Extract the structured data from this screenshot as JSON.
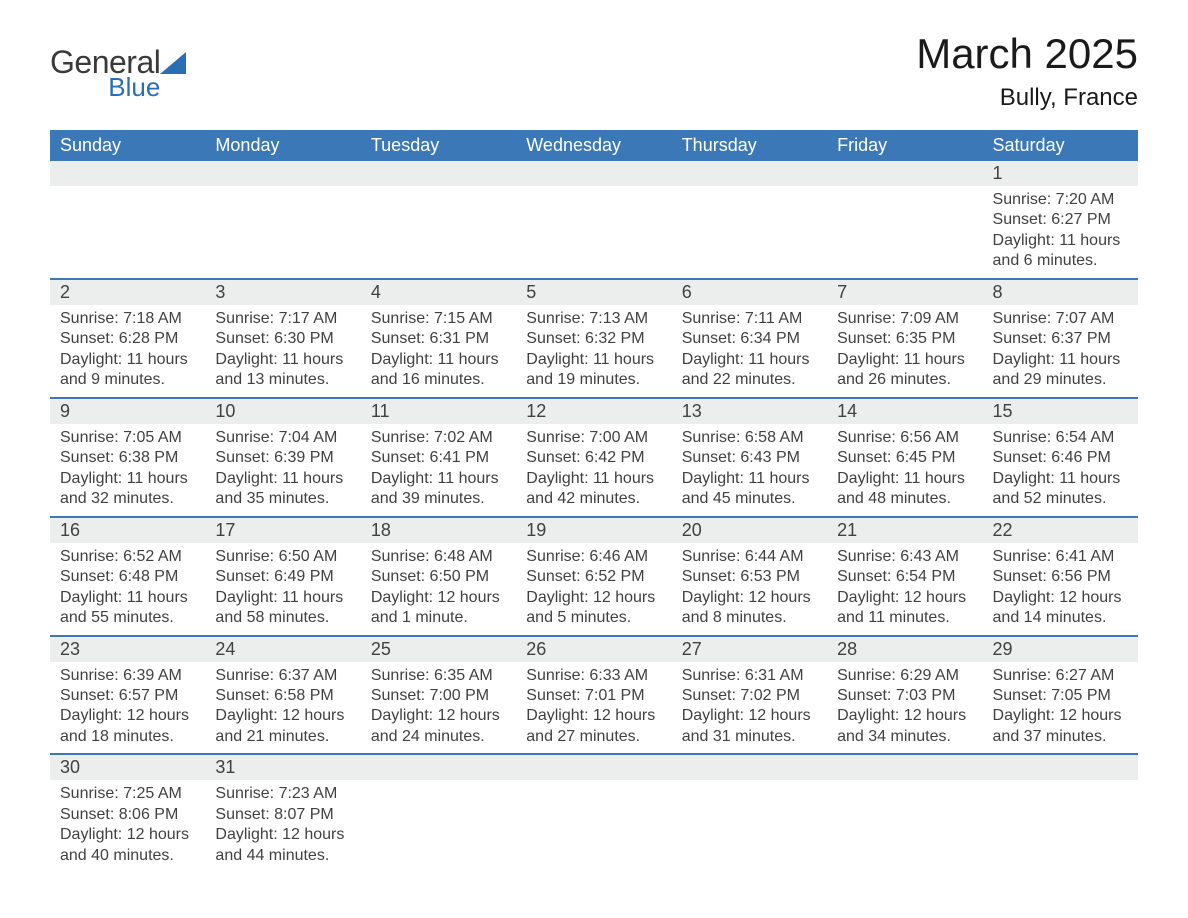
{
  "logo": {
    "text1": "General",
    "text2": "Blue",
    "triangle_color": "#2a6fb5"
  },
  "title": "March 2025",
  "location": "Bully, France",
  "colors": {
    "header_bg": "#3b78b8",
    "header_text": "#ffffff",
    "daynum_bg": "#eceded",
    "row_divider": "#3b78b8",
    "body_text": "#414141",
    "page_bg": "#ffffff",
    "logo_blue": "#2a6fb5"
  },
  "typography": {
    "title_fontsize": 42,
    "location_fontsize": 24,
    "weekday_fontsize": 18,
    "daynum_fontsize": 18,
    "body_fontsize": 16
  },
  "weekdays": [
    "Sunday",
    "Monday",
    "Tuesday",
    "Wednesday",
    "Thursday",
    "Friday",
    "Saturday"
  ],
  "weeks": [
    [
      null,
      null,
      null,
      null,
      null,
      null,
      {
        "n": "1",
        "sunrise": "Sunrise: 7:20 AM",
        "sunset": "Sunset: 6:27 PM",
        "dl1": "Daylight: 11 hours",
        "dl2": "and 6 minutes."
      }
    ],
    [
      {
        "n": "2",
        "sunrise": "Sunrise: 7:18 AM",
        "sunset": "Sunset: 6:28 PM",
        "dl1": "Daylight: 11 hours",
        "dl2": "and 9 minutes."
      },
      {
        "n": "3",
        "sunrise": "Sunrise: 7:17 AM",
        "sunset": "Sunset: 6:30 PM",
        "dl1": "Daylight: 11 hours",
        "dl2": "and 13 minutes."
      },
      {
        "n": "4",
        "sunrise": "Sunrise: 7:15 AM",
        "sunset": "Sunset: 6:31 PM",
        "dl1": "Daylight: 11 hours",
        "dl2": "and 16 minutes."
      },
      {
        "n": "5",
        "sunrise": "Sunrise: 7:13 AM",
        "sunset": "Sunset: 6:32 PM",
        "dl1": "Daylight: 11 hours",
        "dl2": "and 19 minutes."
      },
      {
        "n": "6",
        "sunrise": "Sunrise: 7:11 AM",
        "sunset": "Sunset: 6:34 PM",
        "dl1": "Daylight: 11 hours",
        "dl2": "and 22 minutes."
      },
      {
        "n": "7",
        "sunrise": "Sunrise: 7:09 AM",
        "sunset": "Sunset: 6:35 PM",
        "dl1": "Daylight: 11 hours",
        "dl2": "and 26 minutes."
      },
      {
        "n": "8",
        "sunrise": "Sunrise: 7:07 AM",
        "sunset": "Sunset: 6:37 PM",
        "dl1": "Daylight: 11 hours",
        "dl2": "and 29 minutes."
      }
    ],
    [
      {
        "n": "9",
        "sunrise": "Sunrise: 7:05 AM",
        "sunset": "Sunset: 6:38 PM",
        "dl1": "Daylight: 11 hours",
        "dl2": "and 32 minutes."
      },
      {
        "n": "10",
        "sunrise": "Sunrise: 7:04 AM",
        "sunset": "Sunset: 6:39 PM",
        "dl1": "Daylight: 11 hours",
        "dl2": "and 35 minutes."
      },
      {
        "n": "11",
        "sunrise": "Sunrise: 7:02 AM",
        "sunset": "Sunset: 6:41 PM",
        "dl1": "Daylight: 11 hours",
        "dl2": "and 39 minutes."
      },
      {
        "n": "12",
        "sunrise": "Sunrise: 7:00 AM",
        "sunset": "Sunset: 6:42 PM",
        "dl1": "Daylight: 11 hours",
        "dl2": "and 42 minutes."
      },
      {
        "n": "13",
        "sunrise": "Sunrise: 6:58 AM",
        "sunset": "Sunset: 6:43 PM",
        "dl1": "Daylight: 11 hours",
        "dl2": "and 45 minutes."
      },
      {
        "n": "14",
        "sunrise": "Sunrise: 6:56 AM",
        "sunset": "Sunset: 6:45 PM",
        "dl1": "Daylight: 11 hours",
        "dl2": "and 48 minutes."
      },
      {
        "n": "15",
        "sunrise": "Sunrise: 6:54 AM",
        "sunset": "Sunset: 6:46 PM",
        "dl1": "Daylight: 11 hours",
        "dl2": "and 52 minutes."
      }
    ],
    [
      {
        "n": "16",
        "sunrise": "Sunrise: 6:52 AM",
        "sunset": "Sunset: 6:48 PM",
        "dl1": "Daylight: 11 hours",
        "dl2": "and 55 minutes."
      },
      {
        "n": "17",
        "sunrise": "Sunrise: 6:50 AM",
        "sunset": "Sunset: 6:49 PM",
        "dl1": "Daylight: 11 hours",
        "dl2": "and 58 minutes."
      },
      {
        "n": "18",
        "sunrise": "Sunrise: 6:48 AM",
        "sunset": "Sunset: 6:50 PM",
        "dl1": "Daylight: 12 hours",
        "dl2": "and 1 minute."
      },
      {
        "n": "19",
        "sunrise": "Sunrise: 6:46 AM",
        "sunset": "Sunset: 6:52 PM",
        "dl1": "Daylight: 12 hours",
        "dl2": "and 5 minutes."
      },
      {
        "n": "20",
        "sunrise": "Sunrise: 6:44 AM",
        "sunset": "Sunset: 6:53 PM",
        "dl1": "Daylight: 12 hours",
        "dl2": "and 8 minutes."
      },
      {
        "n": "21",
        "sunrise": "Sunrise: 6:43 AM",
        "sunset": "Sunset: 6:54 PM",
        "dl1": "Daylight: 12 hours",
        "dl2": "and 11 minutes."
      },
      {
        "n": "22",
        "sunrise": "Sunrise: 6:41 AM",
        "sunset": "Sunset: 6:56 PM",
        "dl1": "Daylight: 12 hours",
        "dl2": "and 14 minutes."
      }
    ],
    [
      {
        "n": "23",
        "sunrise": "Sunrise: 6:39 AM",
        "sunset": "Sunset: 6:57 PM",
        "dl1": "Daylight: 12 hours",
        "dl2": "and 18 minutes."
      },
      {
        "n": "24",
        "sunrise": "Sunrise: 6:37 AM",
        "sunset": "Sunset: 6:58 PM",
        "dl1": "Daylight: 12 hours",
        "dl2": "and 21 minutes."
      },
      {
        "n": "25",
        "sunrise": "Sunrise: 6:35 AM",
        "sunset": "Sunset: 7:00 PM",
        "dl1": "Daylight: 12 hours",
        "dl2": "and 24 minutes."
      },
      {
        "n": "26",
        "sunrise": "Sunrise: 6:33 AM",
        "sunset": "Sunset: 7:01 PM",
        "dl1": "Daylight: 12 hours",
        "dl2": "and 27 minutes."
      },
      {
        "n": "27",
        "sunrise": "Sunrise: 6:31 AM",
        "sunset": "Sunset: 7:02 PM",
        "dl1": "Daylight: 12 hours",
        "dl2": "and 31 minutes."
      },
      {
        "n": "28",
        "sunrise": "Sunrise: 6:29 AM",
        "sunset": "Sunset: 7:03 PM",
        "dl1": "Daylight: 12 hours",
        "dl2": "and 34 minutes."
      },
      {
        "n": "29",
        "sunrise": "Sunrise: 6:27 AM",
        "sunset": "Sunset: 7:05 PM",
        "dl1": "Daylight: 12 hours",
        "dl2": "and 37 minutes."
      }
    ],
    [
      {
        "n": "30",
        "sunrise": "Sunrise: 7:25 AM",
        "sunset": "Sunset: 8:06 PM",
        "dl1": "Daylight: 12 hours",
        "dl2": "and 40 minutes."
      },
      {
        "n": "31",
        "sunrise": "Sunrise: 7:23 AM",
        "sunset": "Sunset: 8:07 PM",
        "dl1": "Daylight: 12 hours",
        "dl2": "and 44 minutes."
      },
      null,
      null,
      null,
      null,
      null
    ]
  ]
}
